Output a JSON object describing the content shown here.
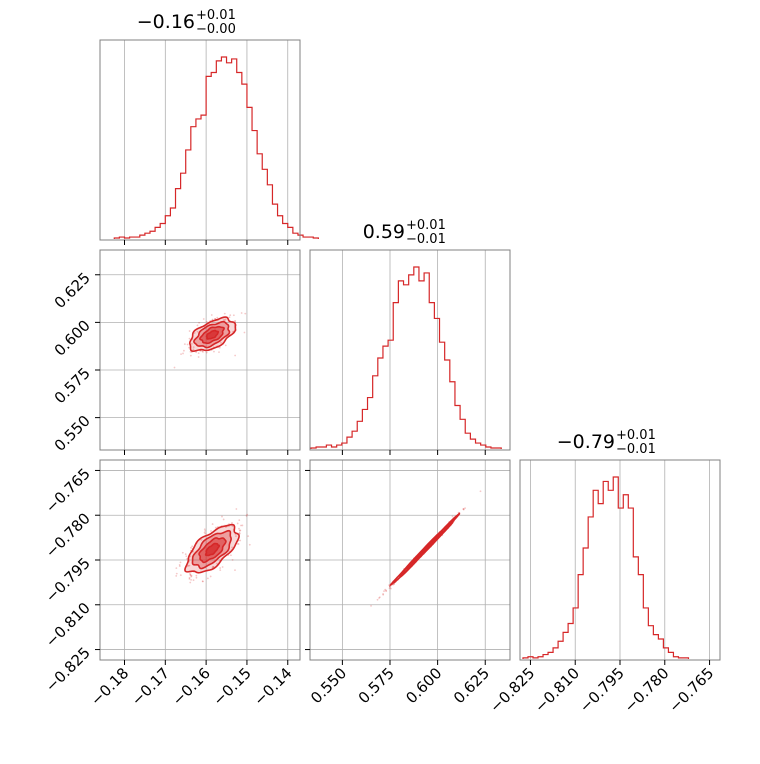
{
  "colors": {
    "accent": "#d62728",
    "frame": "#808080",
    "grid": "#b0b0b0"
  },
  "chart_data": {
    "type": "corner",
    "parameters": [
      {
        "title_value": "−0.16",
        "title_plus": "+0.01",
        "title_minus": "−0.00",
        "range": [
          -0.186,
          -0.137
        ],
        "ticks": [
          -0.18,
          -0.17,
          -0.16,
          -0.15,
          -0.14
        ],
        "tick_labels": [
          "−0.18",
          "−0.17",
          "−0.16",
          "−0.15",
          "−0.14"
        ],
        "hist_step": 0.00125,
        "hist_start": -0.1825,
        "hist_counts": [
          0.5,
          1,
          0.5,
          1,
          1,
          2,
          3,
          4,
          6,
          8,
          12,
          16,
          26,
          34,
          46,
          58,
          62,
          64,
          84,
          86,
          92,
          94,
          91,
          93,
          86,
          80,
          68,
          56,
          44,
          36,
          28,
          18,
          12,
          8,
          6,
          3,
          2,
          1,
          1,
          0.5
        ]
      },
      {
        "title_value": "0.59",
        "title_plus": "+0.01",
        "title_minus": "−0.01",
        "range": [
          0.533,
          0.638
        ],
        "ticks": [
          0.55,
          0.575,
          0.6,
          0.625
        ],
        "tick_labels": [
          "0.550",
          "0.575",
          "0.600",
          "0.625"
        ],
        "hist_step": 0.0027,
        "hist_start": 0.5335,
        "hist_counts": [
          0.5,
          1,
          1,
          2,
          1,
          2,
          3,
          6,
          9,
          14,
          20,
          26,
          37,
          46,
          52,
          55,
          74,
          85,
          83,
          88,
          92,
          85,
          89,
          74,
          66,
          54,
          45,
          34,
          22,
          15,
          8,
          5,
          3,
          2,
          1,
          0.5,
          0.5
        ]
      },
      {
        "title_value": "−0.79",
        "title_plus": "+0.01",
        "title_minus": "−0.01",
        "range": [
          -0.8285,
          -0.7615
        ],
        "ticks": [
          -0.825,
          -0.81,
          -0.795,
          -0.78,
          -0.765
        ],
        "tick_labels": [
          "−0.825",
          "−0.810",
          "−0.795",
          "−0.780",
          "−0.765"
        ],
        "hist_step": 0.00168,
        "hist_start": -0.8275,
        "hist_counts": [
          0.5,
          1,
          0.5,
          1,
          2,
          3,
          5,
          8,
          12,
          16,
          23,
          38,
          50,
          64,
          76,
          70,
          80,
          76,
          82,
          68,
          74,
          68,
          46,
          38,
          23,
          15,
          11,
          9,
          5,
          3,
          1,
          0.5,
          0.5
        ]
      }
    ],
    "pairs": [
      {
        "x": 0,
        "y": 1,
        "center": [
          -0.1585,
          0.5935
        ],
        "slope": 2.14,
        "along_sd": 0.0046,
        "across_sd": 0.0022,
        "contours": [
          0.5,
          1.0,
          1.5,
          2.0
        ]
      },
      {
        "x": 0,
        "y": 2,
        "center": [
          -0.1585,
          -0.7915
        ],
        "slope": 1.43,
        "along_sd": 0.0046,
        "across_sd": 0.0021,
        "contours": [
          0.5,
          1.0,
          1.5,
          2.0
        ]
      },
      {
        "x": 1,
        "y": 2,
        "center": [
          0.5935,
          -0.7915
        ],
        "slope": 0.667,
        "along_sd": 0.0104,
        "across_sd": 0.00035,
        "contours": [
          0.5,
          1.0,
          1.5,
          2.0
        ]
      }
    ]
  }
}
